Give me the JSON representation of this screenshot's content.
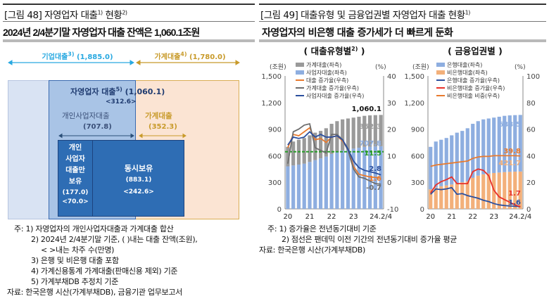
{
  "header": {
    "left_title": "[그림 48] 자영업자 대출",
    "left_title_sup1": "1)",
    "left_title_tail": " 현황",
    "left_title_sup2": "2)",
    "right_title": "[그림 49] 대출유형 및 금융업권별 자영업자 대출 현황",
    "right_title_sup": "1)",
    "left_subtitle": "2024년 2/4분기말 자영업자 대출 잔액은 1,060.1조원",
    "right_subtitle": "자영업자의 비은행 대출 증가세가 더 빠르게 둔화"
  },
  "diagram": {
    "corporate_label": "기업대출",
    "corporate_sup": "3)",
    "corporate_value": "(1,885.0)",
    "household_label": "가계대출",
    "household_sup": "4)",
    "household_value": "(1,780.0)",
    "self_employed_label": "자영업자 대출",
    "self_employed_sup": "5)",
    "self_employed_value": "(1,060.1)",
    "self_employed_count": "<312.6>",
    "business_label": "개인사업자대출",
    "business_value": "(707.8)",
    "hh_inner_label": "가계대출",
    "hh_inner_value": "(352.3)",
    "only_business_lines": [
      "개인",
      "사업자",
      "대출만",
      "보유"
    ],
    "only_business_value": "(177.0)",
    "only_business_count": "<70.0>",
    "both_label": "동시보유",
    "both_value": "(883.1)",
    "both_count": "<242.6>",
    "colors": {
      "corporate": "#29a9e1",
      "household": "#c89a2a",
      "dark_blue": "#2e6db4",
      "mid_blue": "#a9c4e6",
      "light_blue": "#d9e3f3",
      "peach": "#fbe4d3"
    }
  },
  "notes_left": {
    "prefix": "주:",
    "lines": [
      "1) 자영업자의 개인사업자대출과 가계대출 합산",
      "2) 2024년 2/4분기말 기준, (   )내는 대출 잔액(조원),",
      "< >내는 차주 수(만명)",
      "3) 은행 및 비은행 대출 포함",
      "4) 가계신용통계 가계대출(판매신용 제외) 기준",
      "5) 가계부채DB 추정치 기준"
    ],
    "source": "자료: 한국은행 시산(가계부채DB), 금융기관 업무보고서"
  },
  "notes_right": {
    "prefix": "주:",
    "lines": [
      "1) 증가율은 전년동기대비 기준",
      "2) 점선은 팬데믹 이전 기간의 전년동기대비 증가율 평균"
    ],
    "source": "자료: 한국은행 시산(가계부채DB)"
  },
  "chart_data": [
    {
      "type": "bar",
      "title": "( 대출유형별",
      "title_sup": "2)",
      "title_close": " )",
      "left_unit": "(조원)",
      "right_unit": "(%)",
      "ylim": [
        0,
        1500
      ],
      "yticks": [
        "0",
        "300",
        "600",
        "900",
        "1,200",
        "1,500"
      ],
      "y2lim": [
        -10,
        40
      ],
      "y2ticks": [
        "-10",
        "0",
        "10",
        "20",
        "30",
        "40"
      ],
      "x_tick_labels": [
        {
          "index": 0,
          "label": "20"
        },
        {
          "index": 4,
          "label": "21"
        },
        {
          "index": 8,
          "label": "22"
        },
        {
          "index": 12,
          "label": "23"
        },
        {
          "index": 17,
          "label": "24.2/4"
        }
      ],
      "stacked_bars": [
        {
          "name": "사업자대출(좌측)",
          "color": "#8eaee0",
          "values": [
            480,
            490,
            500,
            510,
            530,
            550,
            570,
            590,
            620,
            640,
            660,
            670,
            680,
            690,
            700,
            703,
            705,
            707.8
          ]
        },
        {
          "name": "가계대출(좌측)",
          "color": "#9a9a9a",
          "values": [
            220,
            270,
            280,
            290,
            300,
            310,
            310,
            320,
            340,
            350,
            350,
            350,
            350,
            350,
            350,
            352,
            353,
            352.3
          ]
        }
      ],
      "lines": [
        {
          "name": "대출 증가율(우측)",
          "color": "#e87a2e",
          "values": [
            13,
            18,
            17.5,
            19,
            20.5,
            16,
            16.5,
            15,
            17,
            17.5,
            15.5,
            12.5,
            6,
            3,
            2.5,
            2,
            1.8,
            1.6
          ]
        },
        {
          "name": "가계대출 증가율(우측)",
          "color": "#6e6e6e",
          "values": [
            7,
            19,
            20,
            21.5,
            22,
            13,
            12,
            11,
            18,
            18,
            16,
            12,
            5,
            2,
            1.5,
            0.5,
            -0.5,
            -0.7
          ]
        },
        {
          "name": "사업자대출 증가율(우측)",
          "color": "#2b4f9e",
          "values": [
            14,
            17,
            16.5,
            17,
            19,
            17,
            18,
            17,
            17,
            17.5,
            16,
            12.5,
            8,
            5.5,
            4.5,
            4,
            3.5,
            2.8
          ]
        }
      ],
      "reference_line": {
        "value": 11.5,
        "color": "#2a9d2a"
      },
      "end_labels": [
        {
          "text": "1,060.1",
          "color": "#111111"
        },
        {
          "text": "352.3",
          "color": "#9a9a9a"
        },
        {
          "text": "707.8",
          "color": "#8eaee0"
        },
        {
          "text": "11.5",
          "color": "#2a9d2a"
        },
        {
          "text": "2.8",
          "color": "#2b4f9e"
        },
        {
          "text": "1.6",
          "color": "#e87a2e"
        },
        {
          "text": "-0.7",
          "color": "#6e6e6e"
        }
      ]
    },
    {
      "type": "bar",
      "title": "( 금융업권별 )",
      "title_sup": "",
      "title_close": "",
      "left_unit": "(조원)",
      "right_unit": "(%)",
      "ylim": [
        0,
        1500
      ],
      "yticks": [
        "0",
        "300",
        "600",
        "900",
        "1,200",
        "1,500"
      ],
      "y2lim": [
        0,
        100
      ],
      "y2ticks": [
        "0",
        "20",
        "40",
        "60",
        "80",
        "100"
      ],
      "x_tick_labels": [
        {
          "index": 0,
          "label": "20"
        },
        {
          "index": 4,
          "label": "21"
        },
        {
          "index": 8,
          "label": "22"
        },
        {
          "index": 12,
          "label": "23"
        },
        {
          "index": 17,
          "label": "24.2/4"
        }
      ],
      "stacked_bars": [
        {
          "name": "비은행대출(좌측)",
          "color": "#f3b07a",
          "values": [
            220,
            240,
            255,
            265,
            275,
            290,
            300,
            310,
            350,
            375,
            390,
            400,
            405,
            410,
            415,
            418,
            420,
            421.7
          ]
        },
        {
          "name": "은행대출(좌측)",
          "color": "#8eaee0",
          "values": [
            480,
            520,
            525,
            535,
            555,
            570,
            580,
            600,
            610,
            615,
            620,
            620,
            625,
            630,
            635,
            637,
            638,
            638.5
          ]
        }
      ],
      "lines": [
        {
          "name": "은행대출 증가율(우측)",
          "color": "#2b4f9e",
          "values": [
            11,
            15,
            14.5,
            15,
            16,
            11,
            11.5,
            10,
            9,
            8,
            6.5,
            5.5,
            4,
            3,
            2.5,
            2.2,
            2,
            1.6
          ]
        },
        {
          "name": "비은행대출 증가율(우측)",
          "color": "#e8312a",
          "values": [
            12,
            18,
            20.5,
            22,
            24,
            19,
            19,
            19,
            28,
            30,
            29,
            25,
            14,
            9,
            7,
            5,
            3,
            1.7
          ]
        },
        {
          "name": "비은행대출 비중(우측)",
          "color": "#e87a2e",
          "values": [
            32,
            33,
            33.5,
            34,
            34.5,
            35,
            35.5,
            36,
            38,
            39,
            39.5,
            39.5,
            40,
            40,
            40,
            40,
            40,
            39.8
          ]
        }
      ],
      "legend_order": [
        "은행대출(좌측)",
        "비은행대출(좌측)",
        "은행대출 증가율(우측)",
        "비은행대출 증가율(우측)",
        "비은행대출 비중(우측)"
      ],
      "end_labels": [
        {
          "text": "638.5",
          "color": "#8eaee0"
        },
        {
          "text": "39.8",
          "color": "#e87a2e"
        },
        {
          "text": "421.7",
          "color": "#f3b07a"
        },
        {
          "text": "1.7",
          "color": "#e8312a"
        },
        {
          "text": "1.6",
          "color": "#2b4f9e"
        }
      ]
    }
  ]
}
